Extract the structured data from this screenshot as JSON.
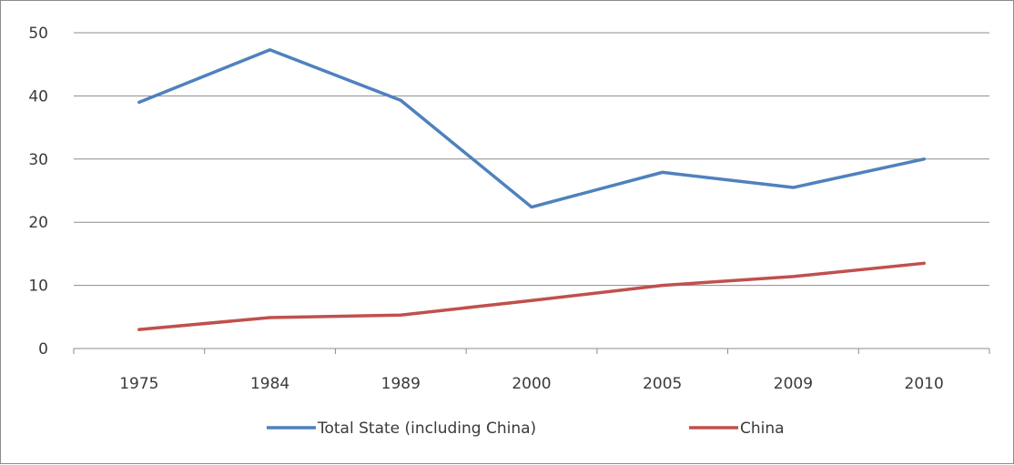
{
  "chart_data": {
    "type": "line",
    "categories": [
      "1975",
      "1984",
      "1989",
      "2000",
      "2005",
      "2009",
      "2010"
    ],
    "ylim": [
      0,
      50
    ],
    "yticks": [
      0,
      10,
      20,
      30,
      40,
      50
    ],
    "grid": true,
    "legend_position": "bottom",
    "series": [
      {
        "name": "Total State (including China)",
        "color": "#4f81bd",
        "values": [
          39,
          47.3,
          39.3,
          22.4,
          27.9,
          25.5,
          30
        ]
      },
      {
        "name": "China",
        "color": "#c0504d",
        "values": [
          3,
          4.9,
          5.3,
          7.6,
          10,
          11.4,
          13.5
        ]
      }
    ]
  }
}
